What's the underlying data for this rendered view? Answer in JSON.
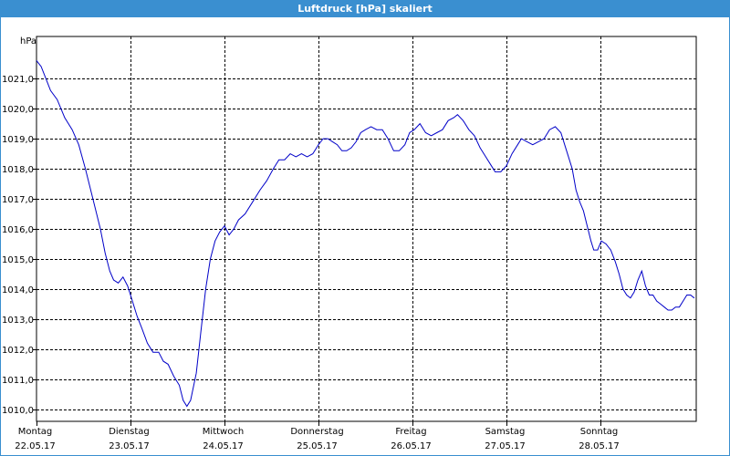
{
  "title": "Luftdruck [hPa] skaliert",
  "colors": {
    "title_bar": "#3a8fd0",
    "line": "#0000c8",
    "grid": "#000000",
    "background": "#ffffff"
  },
  "chart_data": {
    "type": "line",
    "title": "Luftdruck [hPa] skaliert",
    "ylabel": "hPa",
    "xlabel": "",
    "ylim": [
      1009.6,
      1022.4
    ],
    "yticks": [
      1010.0,
      1011.0,
      1012.0,
      1013.0,
      1014.0,
      1015.0,
      1016.0,
      1017.0,
      1018.0,
      1019.0,
      1020.0,
      1021.0
    ],
    "ytick_labels": [
      "1010,0",
      "1011,0",
      "1012,0",
      "1013,0",
      "1014,0",
      "1015,0",
      "1016,0",
      "1017,0",
      "1018,0",
      "1019,0",
      "1020,0",
      "1021,0"
    ],
    "xlim": [
      0,
      7.02
    ],
    "xticks": [
      {
        "x": 0,
        "day": "Montag",
        "date": "22.05.17"
      },
      {
        "x": 1,
        "day": "Dienstag",
        "date": "23.05.17"
      },
      {
        "x": 2,
        "day": "Mittwoch",
        "date": "24.05.17"
      },
      {
        "x": 3,
        "day": "Donnerstag",
        "date": "25.05.17"
      },
      {
        "x": 4,
        "day": "Freitag",
        "date": "26.05.17"
      },
      {
        "x": 5,
        "day": "Samstag",
        "date": "27.05.17"
      },
      {
        "x": 6,
        "day": "Sonntag",
        "date": "28.05.17"
      }
    ],
    "grid": true,
    "series": [
      {
        "values": [
          [
            0.0,
            1021.6
          ],
          [
            0.05,
            1021.4
          ],
          [
            0.1,
            1021.0
          ],
          [
            0.15,
            1020.6
          ],
          [
            0.22,
            1020.3
          ],
          [
            0.3,
            1019.7
          ],
          [
            0.38,
            1019.3
          ],
          [
            0.45,
            1018.8
          ],
          [
            0.52,
            1018.0
          ],
          [
            0.6,
            1017.0
          ],
          [
            0.68,
            1016.0
          ],
          [
            0.73,
            1015.2
          ],
          [
            0.78,
            1014.6
          ],
          [
            0.82,
            1014.3
          ],
          [
            0.87,
            1014.2
          ],
          [
            0.92,
            1014.4
          ],
          [
            0.97,
            1014.1
          ],
          [
            1.02,
            1013.6
          ],
          [
            1.07,
            1013.1
          ],
          [
            1.12,
            1012.7
          ],
          [
            1.18,
            1012.2
          ],
          [
            1.24,
            1011.9
          ],
          [
            1.3,
            1011.9
          ],
          [
            1.35,
            1011.6
          ],
          [
            1.4,
            1011.5
          ],
          [
            1.46,
            1011.1
          ],
          [
            1.52,
            1010.8
          ],
          [
            1.56,
            1010.3
          ],
          [
            1.6,
            1010.1
          ],
          [
            1.64,
            1010.3
          ],
          [
            1.7,
            1011.2
          ],
          [
            1.75,
            1012.6
          ],
          [
            1.8,
            1014.0
          ],
          [
            1.85,
            1015.0
          ],
          [
            1.9,
            1015.6
          ],
          [
            1.95,
            1015.9
          ],
          [
            2.0,
            1016.1
          ],
          [
            2.05,
            1015.8
          ],
          [
            2.1,
            1016.0
          ],
          [
            2.15,
            1016.3
          ],
          [
            2.22,
            1016.5
          ],
          [
            2.3,
            1016.9
          ],
          [
            2.38,
            1017.3
          ],
          [
            2.45,
            1017.6
          ],
          [
            2.52,
            1018.0
          ],
          [
            2.58,
            1018.3
          ],
          [
            2.64,
            1018.3
          ],
          [
            2.7,
            1018.5
          ],
          [
            2.76,
            1018.4
          ],
          [
            2.82,
            1018.5
          ],
          [
            2.88,
            1018.4
          ],
          [
            2.94,
            1018.5
          ],
          [
            3.0,
            1018.8
          ],
          [
            3.05,
            1019.0
          ],
          [
            3.1,
            1019.0
          ],
          [
            3.15,
            1018.9
          ],
          [
            3.2,
            1018.8
          ],
          [
            3.25,
            1018.6
          ],
          [
            3.3,
            1018.6
          ],
          [
            3.35,
            1018.7
          ],
          [
            3.4,
            1018.9
          ],
          [
            3.45,
            1019.2
          ],
          [
            3.5,
            1019.3
          ],
          [
            3.56,
            1019.4
          ],
          [
            3.62,
            1019.3
          ],
          [
            3.68,
            1019.3
          ],
          [
            3.74,
            1019.0
          ],
          [
            3.8,
            1018.6
          ],
          [
            3.86,
            1018.6
          ],
          [
            3.92,
            1018.8
          ],
          [
            3.97,
            1019.2
          ],
          [
            4.02,
            1019.3
          ],
          [
            4.08,
            1019.5
          ],
          [
            4.14,
            1019.2
          ],
          [
            4.2,
            1019.1
          ],
          [
            4.26,
            1019.2
          ],
          [
            4.32,
            1019.3
          ],
          [
            4.38,
            1019.6
          ],
          [
            4.44,
            1019.7
          ],
          [
            4.48,
            1019.8
          ],
          [
            4.54,
            1019.6
          ],
          [
            4.6,
            1019.3
          ],
          [
            4.66,
            1019.1
          ],
          [
            4.72,
            1018.7
          ],
          [
            4.78,
            1018.4
          ],
          [
            4.84,
            1018.1
          ],
          [
            4.88,
            1017.9
          ],
          [
            4.94,
            1017.9
          ],
          [
            5.0,
            1018.1
          ],
          [
            5.06,
            1018.5
          ],
          [
            5.12,
            1018.8
          ],
          [
            5.16,
            1019.0
          ],
          [
            5.22,
            1018.9
          ],
          [
            5.28,
            1018.8
          ],
          [
            5.34,
            1018.9
          ],
          [
            5.4,
            1019.0
          ],
          [
            5.46,
            1019.3
          ],
          [
            5.52,
            1019.4
          ],
          [
            5.58,
            1019.2
          ],
          [
            5.64,
            1018.6
          ],
          [
            5.7,
            1018.0
          ],
          [
            5.74,
            1017.3
          ],
          [
            5.78,
            1016.9
          ],
          [
            5.82,
            1016.6
          ],
          [
            5.86,
            1016.1
          ],
          [
            5.9,
            1015.6
          ],
          [
            5.93,
            1015.3
          ],
          [
            5.97,
            1015.3
          ],
          [
            6.01,
            1015.6
          ],
          [
            6.06,
            1015.5
          ],
          [
            6.11,
            1015.3
          ],
          [
            6.16,
            1014.9
          ],
          [
            6.2,
            1014.5
          ],
          [
            6.24,
            1014.0
          ],
          [
            6.28,
            1013.8
          ],
          [
            6.32,
            1013.7
          ],
          [
            6.36,
            1013.9
          ],
          [
            6.4,
            1014.3
          ],
          [
            6.44,
            1014.6
          ],
          [
            6.48,
            1014.1
          ],
          [
            6.52,
            1013.8
          ],
          [
            6.56,
            1013.8
          ],
          [
            6.6,
            1013.6
          ],
          [
            6.64,
            1013.5
          ],
          [
            6.68,
            1013.4
          ],
          [
            6.72,
            1013.3
          ],
          [
            6.76,
            1013.3
          ],
          [
            6.8,
            1013.4
          ],
          [
            6.84,
            1013.4
          ],
          [
            6.88,
            1013.6
          ],
          [
            6.92,
            1013.8
          ],
          [
            6.96,
            1013.8
          ],
          [
            7.0,
            1013.7
          ]
        ]
      }
    ]
  }
}
